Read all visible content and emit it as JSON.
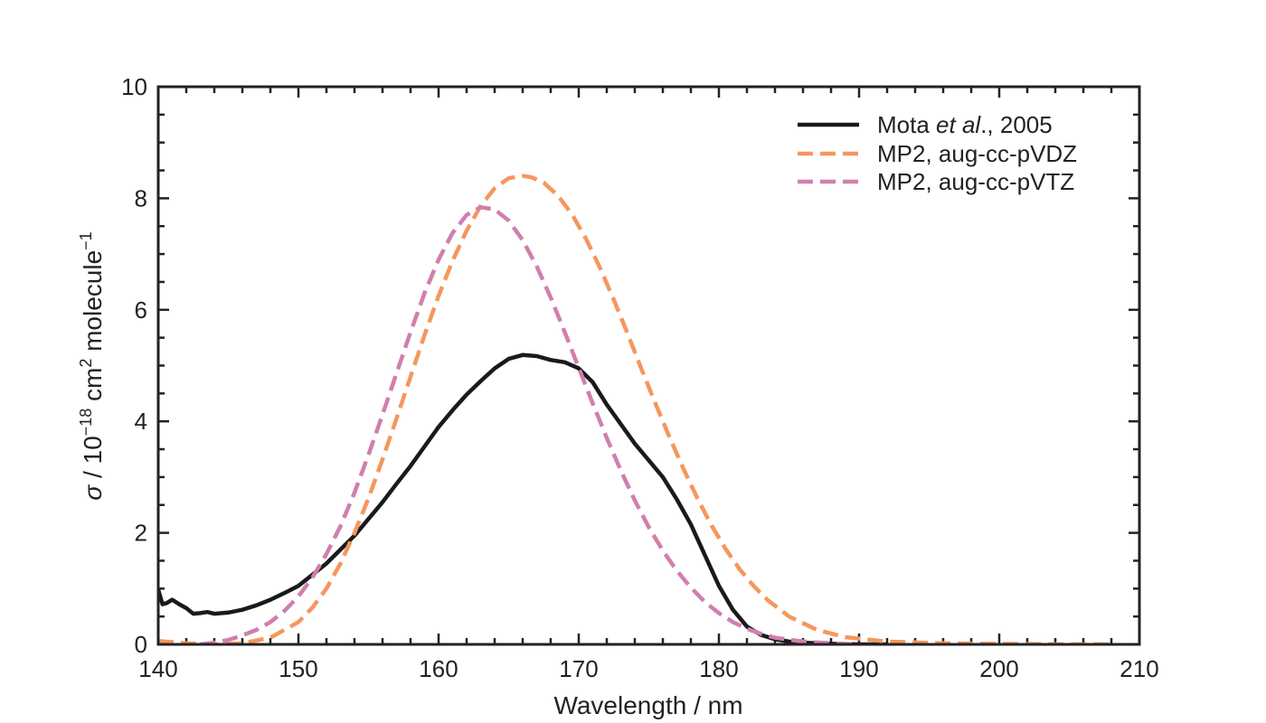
{
  "chart_data": {
    "type": "line",
    "xlabel": "Wavelength / nm",
    "ylabel": {
      "symbol": "σ",
      "prefix": " / 10",
      "exp1": "−18",
      "mid": " cm",
      "exp2": "2",
      "suffix": " molecule",
      "exp3": "−1"
    },
    "xlim": [
      140,
      210
    ],
    "ylim": [
      0,
      10
    ],
    "xticks": [
      140,
      150,
      160,
      170,
      180,
      190,
      200,
      210
    ],
    "yticks": [
      0,
      2,
      4,
      6,
      8,
      10
    ],
    "x_minor_step": 2,
    "y_minor_step": 0.5,
    "grid": false,
    "legend_position": "top-right",
    "series": [
      {
        "name": "Mota et al., 2005",
        "legend": {
          "pre": "Mota ",
          "italic": "et al",
          "post": "., 2005"
        },
        "color": "#1a1a1a",
        "dash": "solid",
        "x": [
          140.0,
          140.3,
          140.6,
          141.0,
          141.5,
          142.0,
          142.5,
          143.0,
          143.5,
          144.0,
          145.0,
          146.0,
          147.0,
          148.0,
          149.0,
          150.0,
          151.0,
          152.0,
          153.0,
          154.0,
          155.0,
          156.0,
          157.0,
          158.0,
          159.0,
          160.0,
          161.0,
          162.0,
          163.0,
          164.0,
          165.0,
          166.0,
          167.0,
          168.0,
          169.0,
          170.0,
          171.0,
          172.0,
          173.0,
          174.0,
          175.0,
          176.0,
          177.0,
          178.0,
          179.0,
          180.0,
          181.0,
          182.0,
          183.0,
          184.0,
          185.0,
          186.0,
          187.0,
          188.0,
          190.0,
          192.0
        ],
        "y": [
          0.98,
          0.72,
          0.74,
          0.8,
          0.72,
          0.65,
          0.55,
          0.56,
          0.58,
          0.55,
          0.57,
          0.62,
          0.7,
          0.8,
          0.92,
          1.05,
          1.25,
          1.45,
          1.7,
          1.95,
          2.25,
          2.55,
          2.88,
          3.2,
          3.55,
          3.9,
          4.2,
          4.48,
          4.72,
          4.95,
          5.12,
          5.19,
          5.17,
          5.1,
          5.06,
          4.95,
          4.7,
          4.3,
          3.95,
          3.6,
          3.3,
          3.0,
          2.6,
          2.15,
          1.6,
          1.05,
          0.62,
          0.32,
          0.17,
          0.09,
          0.05,
          0.03,
          0.02,
          0.01,
          0.0,
          0.0
        ]
      },
      {
        "name": "MP2, aug-cc-pVDZ",
        "legend": {
          "pre": "MP2, aug-cc-pVDZ",
          "italic": "",
          "post": ""
        },
        "color": "#f5975d",
        "dash": "dashed",
        "x": [
          140.0,
          142.0,
          144.0,
          146.0,
          148.0,
          150.0,
          151.0,
          152.0,
          153.0,
          154.0,
          155.0,
          156.0,
          157.0,
          158.0,
          159.0,
          160.0,
          161.0,
          162.0,
          163.0,
          164.0,
          165.0,
          166.0,
          166.6,
          167.5,
          168.5,
          169.5,
          170.5,
          171.5,
          172.5,
          173.5,
          174.5,
          175.5,
          176.5,
          177.5,
          178.5,
          179.5,
          180.5,
          181.5,
          182.5,
          183.5,
          185.0,
          187.0,
          189.0,
          192.0,
          196.0,
          200.0,
          205.0,
          208.0
        ],
        "y": [
          0.06,
          0.02,
          0.0,
          0.02,
          0.12,
          0.4,
          0.66,
          1.0,
          1.45,
          2.0,
          2.62,
          3.32,
          4.05,
          4.8,
          5.55,
          6.25,
          6.88,
          7.42,
          7.86,
          8.18,
          8.36,
          8.4,
          8.38,
          8.28,
          8.05,
          7.72,
          7.28,
          6.76,
          6.18,
          5.56,
          4.92,
          4.3,
          3.7,
          3.13,
          2.6,
          2.12,
          1.7,
          1.34,
          1.04,
          0.79,
          0.5,
          0.26,
          0.13,
          0.05,
          0.02,
          0.01,
          0.0,
          0.0
        ]
      },
      {
        "name": "MP2, aug-cc-pVTZ",
        "legend": {
          "pre": "MP2, aug-cc-pVTZ",
          "italic": "",
          "post": ""
        },
        "color": "#d07fae",
        "dash": "dashed",
        "x": [
          143.0,
          144.0,
          145.0,
          146.0,
          147.0,
          148.0,
          149.0,
          150.0,
          151.0,
          152.0,
          153.0,
          154.0,
          155.0,
          156.0,
          157.0,
          158.0,
          159.0,
          160.0,
          161.0,
          162.0,
          163.0,
          164.0,
          165.0,
          166.0,
          167.0,
          168.0,
          169.0,
          170.0,
          171.0,
          172.0,
          173.0,
          174.0,
          175.0,
          176.0,
          177.0,
          178.0,
          179.0,
          180.0,
          181.0,
          182.0,
          183.0,
          184.0,
          186.0,
          188.0,
          190.0
        ],
        "y": [
          0.0,
          0.03,
          0.08,
          0.16,
          0.26,
          0.4,
          0.6,
          0.86,
          1.2,
          1.62,
          2.12,
          2.72,
          3.4,
          4.12,
          4.86,
          5.6,
          6.3,
          6.9,
          7.38,
          7.7,
          7.84,
          7.8,
          7.6,
          7.25,
          6.78,
          6.22,
          5.6,
          4.96,
          4.32,
          3.7,
          3.12,
          2.58,
          2.1,
          1.68,
          1.32,
          1.02,
          0.76,
          0.56,
          0.4,
          0.28,
          0.19,
          0.12,
          0.05,
          0.02,
          0.0
        ]
      }
    ]
  }
}
